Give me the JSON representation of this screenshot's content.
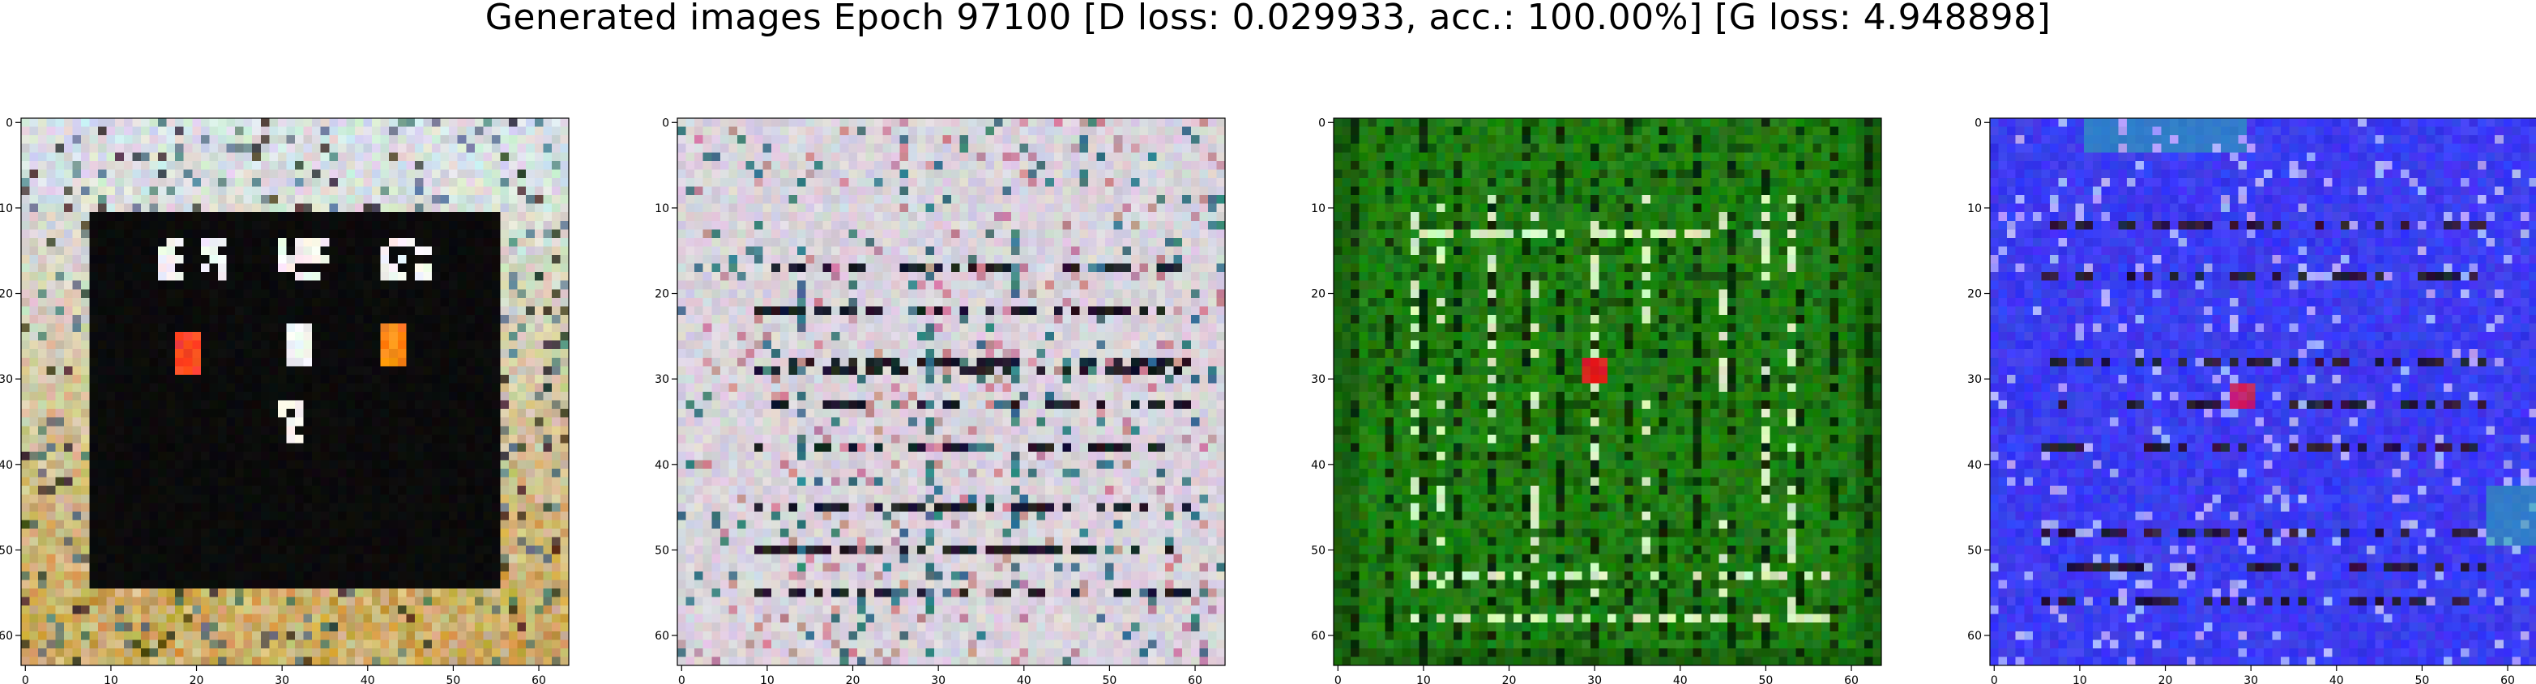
{
  "figure": {
    "title": "Generated images Epoch 97100 [D loss: 0.029933, acc.: 100.00%] [G loss: 4.948898]"
  },
  "chart_data": [
    {
      "type": "heatmap",
      "title": "",
      "xlabel": "",
      "ylabel": "",
      "xlim": [
        -0.5,
        63.5
      ],
      "ylim": [
        63.5,
        -0.5
      ],
      "x_ticks": [
        0,
        10,
        20,
        30,
        40,
        50,
        60
      ],
      "y_ticks": [
        0,
        10,
        20,
        30,
        40,
        50,
        60
      ],
      "grid": false,
      "content": "generated 64x64 RGB image",
      "colors": {
        "background": "#0b0b0b",
        "border": "#c99a3a",
        "border_light": "#d9e0e2",
        "spot_red": "#ff4a2a",
        "spot_orange": "#ff8a1a",
        "spot_white": "#f4f4f4"
      }
    },
    {
      "type": "heatmap",
      "title": "",
      "xlabel": "",
      "ylabel": "",
      "xlim": [
        -0.5,
        63.5
      ],
      "ylim": [
        63.5,
        -0.5
      ],
      "x_ticks": [
        0,
        10,
        20,
        30,
        40,
        50,
        60
      ],
      "y_ticks": [
        0,
        10,
        20,
        30,
        40,
        50,
        60
      ],
      "grid": false,
      "content": "generated 64x64 RGB image",
      "colors": {
        "background": "#d9d3dc",
        "dark_mark": "#1c1c28",
        "teal_mark": "#3e7a86",
        "pink_mark": "#c98c9a"
      }
    },
    {
      "type": "heatmap",
      "title": "",
      "xlabel": "",
      "ylabel": "",
      "xlim": [
        -0.5,
        63.5
      ],
      "ylim": [
        63.5,
        -0.5
      ],
      "x_ticks": [
        0,
        10,
        20,
        30,
        40,
        50,
        60
      ],
      "y_ticks": [
        0,
        10,
        20,
        30,
        40,
        50,
        60
      ],
      "grid": false,
      "content": "generated 64x64 RGB image",
      "colors": {
        "background": "#1f7d12",
        "dark_mark": "#0a2a05",
        "light_mark": "#d6f0c0",
        "spot_red": "#e02020"
      }
    },
    {
      "type": "heatmap",
      "title": "",
      "xlabel": "",
      "ylabel": "",
      "xlim": [
        -0.5,
        63.5
      ],
      "ylim": [
        63.5,
        -0.5
      ],
      "x_ticks": [
        0,
        10,
        20,
        30,
        40,
        50,
        60
      ],
      "y_ticks": [
        0,
        10,
        20,
        30,
        40,
        50,
        60
      ],
      "grid": false,
      "content": "generated 64x64 RGB image",
      "colors": {
        "background": "#3c3cf0",
        "dark_mark": "#2a1c3a",
        "light_mark": "#a8a8ff",
        "teal_mark": "#2aa8b0",
        "spot_red": "#c0206a"
      }
    }
  ]
}
